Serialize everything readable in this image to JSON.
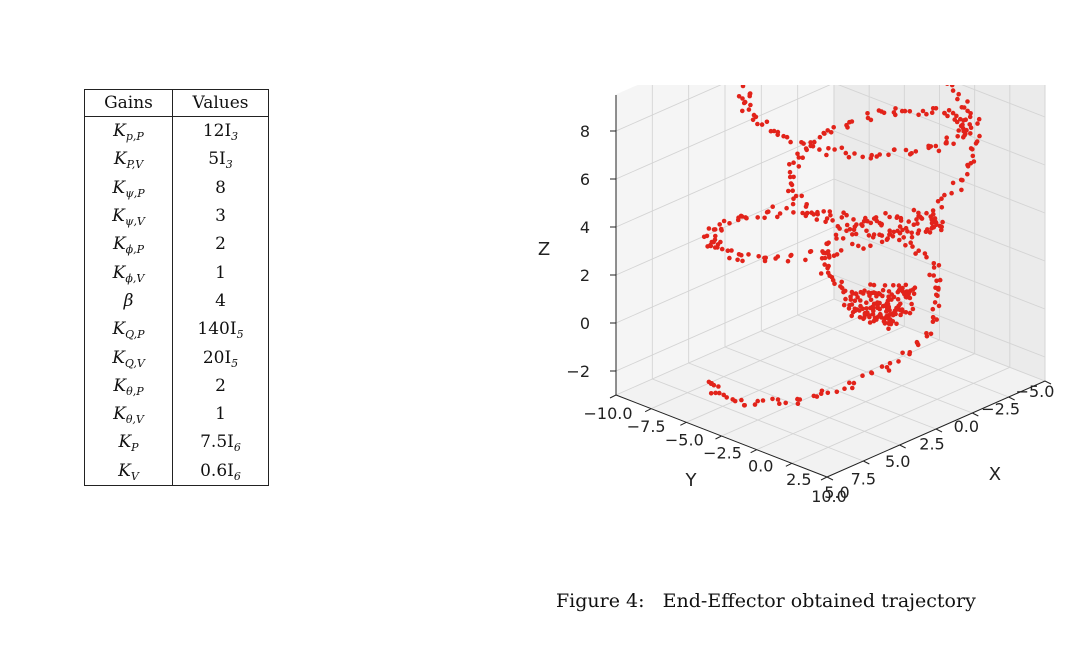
{
  "table": {
    "headers": [
      "Gains",
      "Values"
    ],
    "rows": [
      {
        "gain": "K",
        "sub": "p,P",
        "value": "12I",
        "value_sub": "3"
      },
      {
        "gain": "K",
        "sub": "P,V",
        "value": "5I",
        "value_sub": "3"
      },
      {
        "gain": "K",
        "sub": "ψ,P",
        "value": "8",
        "value_sub": ""
      },
      {
        "gain": "K",
        "sub": "ψ,V",
        "value": "3",
        "value_sub": ""
      },
      {
        "gain": "K",
        "sub": "ϕ,P",
        "value": "2",
        "value_sub": ""
      },
      {
        "gain": "K",
        "sub": "ϕ,V",
        "value": "1",
        "value_sub": ""
      },
      {
        "gain": "β",
        "sub": "",
        "value": "4",
        "value_sub": ""
      },
      {
        "gain": "K",
        "sub": "Q,P",
        "value": "140I",
        "value_sub": "5"
      },
      {
        "gain": "K",
        "sub": "Q,V",
        "value": "20I",
        "value_sub": "5"
      },
      {
        "gain": "K",
        "sub": "θ,P",
        "value": "2",
        "value_sub": ""
      },
      {
        "gain": "K",
        "sub": "θ,V",
        "value": "1",
        "value_sub": ""
      },
      {
        "gain": "K",
        "sub": "P",
        "value": "7.5I",
        "value_sub": "6"
      },
      {
        "gain": "K",
        "sub": "V",
        "value": "0.6I",
        "value_sub": "6"
      }
    ]
  },
  "caption": "Figure 4:   End-Effector obtained trajectory",
  "chart_data": {
    "type": "scatter",
    "projection": "3d",
    "title": "",
    "xlabel": "X",
    "ylabel": "Y",
    "zlabel": "Z",
    "x_ticks": [
      "10.0",
      "7.5",
      "5.0",
      "2.5",
      "0.0",
      "−2.5",
      "−5.0"
    ],
    "y_ticks": [
      "−10.0",
      "−7.5",
      "−5.0",
      "−2.5",
      "0.0",
      "2.5",
      "5.0"
    ],
    "z_ticks": [
      "8",
      "6",
      "4",
      "2",
      "0",
      "−2"
    ],
    "xlim": [
      -6,
      11
    ],
    "ylim": [
      -11,
      6
    ],
    "zlim": [
      -3,
      9.5
    ],
    "grid": true,
    "point_color": "#e2231a",
    "series": [
      {
        "values_description": "helical trajectory",
        "points": [
          [
            0.0,
            0.0,
            0.0
          ],
          [
            1.0,
            -0.2,
            0.0
          ],
          [
            1.6,
            -1.2,
            0.1
          ],
          [
            1.3,
            -2.3,
            0.2
          ],
          [
            0.2,
            -2.8,
            0.3
          ],
          [
            -0.9,
            -2.3,
            0.4
          ],
          [
            -1.4,
            -1.0,
            0.6
          ],
          [
            -1.0,
            0.4,
            0.8
          ],
          [
            0.2,
            1.2,
            1.0
          ],
          [
            1.7,
            1.1,
            1.2
          ],
          [
            2.9,
            0.0,
            1.5
          ],
          [
            3.2,
            -1.6,
            1.8
          ],
          [
            2.5,
            -3.2,
            2.1
          ],
          [
            0.9,
            -4.0,
            2.4
          ],
          [
            -0.9,
            -3.8,
            2.7
          ],
          [
            -2.3,
            -2.6,
            3.0
          ],
          [
            -2.8,
            -0.8,
            3.3
          ],
          [
            -2.3,
            1.1,
            3.6
          ],
          [
            -0.9,
            2.5,
            3.9
          ],
          [
            1.0,
            3.0,
            4.2
          ],
          [
            3.0,
            2.6,
            4.5
          ],
          [
            4.5,
            1.1,
            4.8
          ],
          [
            5.1,
            -0.9,
            5.1
          ],
          [
            4.7,
            -3.1,
            5.4
          ],
          [
            3.2,
            -5.0,
            5.7
          ],
          [
            1.0,
            -6.0,
            6.0
          ],
          [
            -1.4,
            -6.0,
            6.3
          ],
          [
            -3.3,
            -4.9,
            6.6
          ],
          [
            -4.4,
            -2.9,
            6.9
          ],
          [
            -4.6,
            -0.5,
            7.2
          ],
          [
            -3.8,
            1.8,
            7.5
          ],
          [
            -2.0,
            3.6,
            7.8
          ],
          [
            0.3,
            4.6,
            8.1
          ],
          [
            2.8,
            4.6,
            8.3
          ],
          [
            5.0,
            3.5,
            8.5
          ],
          [
            6.6,
            1.6,
            8.7
          ],
          [
            7.4,
            -0.8,
            8.9
          ],
          [
            7.2,
            -3.4,
            9.0
          ],
          [
            6.0,
            -5.8,
            9.1
          ],
          [
            3.9,
            -7.6,
            9.1
          ],
          [
            1.2,
            -8.6,
            9.0
          ],
          [
            -1.6,
            -8.6,
            8.8
          ],
          [
            -4.0,
            -7.6,
            8.5
          ],
          [
            -5.6,
            -5.6,
            8.2
          ],
          [
            -6.3,
            -3.1,
            7.8
          ],
          [
            -5.9,
            -0.5,
            7.4
          ],
          [
            -4.6,
            1.9,
            7.0
          ],
          [
            -2.6,
            3.8,
            6.6
          ],
          [
            0.0,
            5.0,
            6.2
          ],
          [
            2.6,
            5.4,
            5.8
          ],
          [
            5.2,
            4.8,
            5.4
          ],
          [
            7.3,
            3.2,
            5.0
          ],
          [
            8.8,
            0.9,
            4.6
          ],
          [
            9.4,
            -1.8,
            4.2
          ],
          [
            9.0,
            -4.6,
            3.8
          ],
          [
            7.6,
            -7.0,
            3.4
          ],
          [
            5.4,
            -8.8,
            3.0
          ],
          [
            2.7,
            -9.8,
            2.6
          ],
          [
            -0.2,
            -9.9,
            2.2
          ],
          [
            -2.8,
            -9.1,
            1.8
          ],
          [
            -4.6,
            -7.4,
            1.4
          ],
          [
            -5.4,
            -5.1,
            1.0
          ],
          [
            -5.2,
            -2.6,
            0.6
          ],
          [
            -4.0,
            -0.3,
            0.2
          ],
          [
            -2.0,
            1.5,
            -0.2
          ],
          [
            0.5,
            2.5,
            -0.6
          ],
          [
            3.2,
            2.6,
            -1.0
          ],
          [
            5.7,
            1.8,
            -1.4
          ],
          [
            7.6,
            0.1,
            -1.8
          ],
          [
            8.7,
            -2.2,
            -2.1
          ],
          [
            8.8,
            -4.8,
            -2.3
          ],
          [
            7.9,
            -7.2,
            -2.4
          ]
        ]
      }
    ]
  }
}
